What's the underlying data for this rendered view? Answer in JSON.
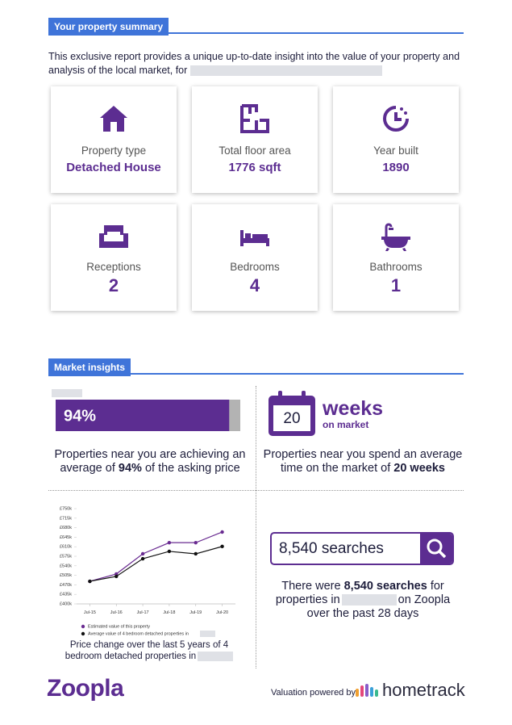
{
  "summary": {
    "title": "Your property summary",
    "intro": "This exclusive report provides a unique up-to-date insight into the value of your property and analysis of the local market, for",
    "cards": [
      {
        "label": "Property type",
        "value": "Detached House"
      },
      {
        "label": "Total floor area",
        "value": "1776 sqft"
      },
      {
        "label": "Year built",
        "value": "1890"
      },
      {
        "label": "Receptions",
        "value": "2"
      },
      {
        "label": "Bedrooms",
        "value": "4"
      },
      {
        "label": "Bathrooms",
        "value": "1"
      }
    ]
  },
  "market": {
    "title": "Market insights",
    "asking": {
      "percent": 94,
      "percent_label": "94%",
      "text_before": "Properties near you are achieving an average of",
      "highlight": "94%",
      "text_after": "of the asking price"
    },
    "time": {
      "weeks": 20,
      "unit": "weeks",
      "unit_sub": "on market",
      "text_before": "Properties near you spend an average time on the market of",
      "highlight": "20 weeks"
    },
    "searches": {
      "box_label": "8,540 searches",
      "text_before": "There were",
      "highlight": "8,540 searches",
      "text_middle": "for properties in",
      "text_after": "on Zoopla over the past 28 days"
    }
  },
  "chart_data": {
    "type": "line",
    "categories": [
      "Jul-15",
      "Jul-16",
      "Jul-17",
      "Jul-18",
      "Jul-19",
      "Jul-20"
    ],
    "series": [
      {
        "name": "Estimated value of this property",
        "color": "#6a2c91",
        "values": [
          483,
          510,
          584,
          625,
          625,
          664
        ]
      },
      {
        "name": "Average value of 4 bedroom detached properties in",
        "color": "#111111",
        "values": [
          483,
          501,
          566,
          593,
          584,
          611
        ]
      }
    ],
    "ylim": [
      400,
      750
    ],
    "yticks": [
      {
        "value": 400,
        "label": "£400k"
      },
      {
        "value": 435,
        "label": "£435k"
      },
      {
        "value": 470,
        "label": "£470k"
      },
      {
        "value": 505,
        "label": "£505k"
      },
      {
        "value": 540,
        "label": "£540k"
      },
      {
        "value": 575,
        "label": "£575k"
      },
      {
        "value": 610,
        "label": "£610k"
      },
      {
        "value": 645,
        "label": "£645k"
      },
      {
        "value": 680,
        "label": "£680k"
      },
      {
        "value": 715,
        "label": "£715k"
      },
      {
        "value": 750,
        "label": "£750k"
      }
    ],
    "grid": false,
    "caption": "Price change over the last 5 years of 4 bedroom detached properties in"
  },
  "footer": {
    "brand": "Zoopla",
    "powered": "Valuation powered by",
    "partner": "hometrack"
  }
}
